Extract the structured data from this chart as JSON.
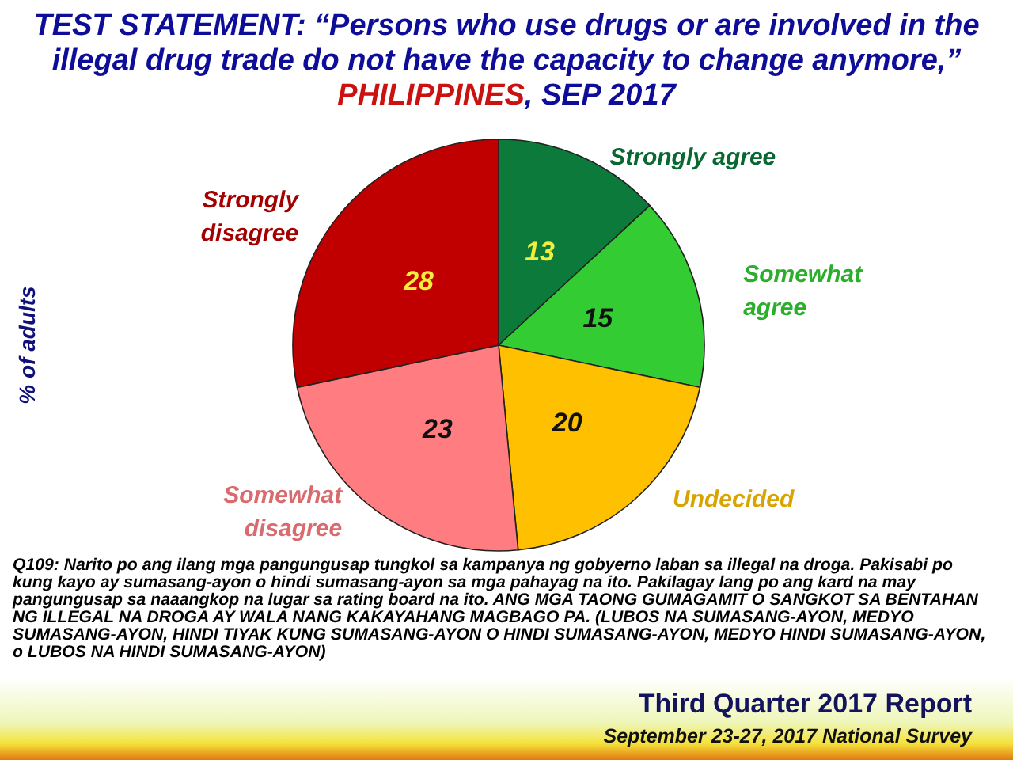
{
  "chart_data": {
    "type": "pie",
    "title": "TEST STATEMENT: “Persons who use drugs or are involved in the illegal drug trade do not have the capacity to change anymore,”",
    "subtitle": "PHILIPPINES, SEP 2017",
    "ylabel": "% of adults",
    "categories": [
      "Strongly agree",
      "Somewhat agree",
      "Undecided",
      "Somewhat disagree",
      "Strongly disagree"
    ],
    "values": [
      13,
      15,
      20,
      23,
      28
    ],
    "colors": [
      "#0b7a3b",
      "#33cc33",
      "#ffc000",
      "#ff7c80",
      "#c00000"
    ],
    "data_labels": true,
    "annotations": [
      "Q109: Narito po ang ilang mga pangungusap tungkol sa kampanya ng gobyerno laban sa illegal na droga. Pakisabi po kung kayo ay sumasang-ayon o hindi sumasang-ayon sa mga pahayag na ito. Pakilagay lang po ang kard na may pangungusap sa naaangkop na lugar sa rating board na ito. ANG MGA TAONG GUMAGAMIT O SANGKOT SA BENTAHAN NG ILLEGAL NA DROGA AY WALA NANG KAKAYAHANG MAGBAGO PA. (LUBOS NA SUMASANG-AYON, MEDYO SUMASANG-AYON, HINDI TIYAK KUNG SUMASANG-AYON O HINDI SUMASANG-AYON, MEDYO HINDI SUMASANG-AYON, o LUBOS NA HINDI SUMASANG-AYON)",
      "Third Quarter 2017 Report",
      "September 23-27, 2017 National Survey"
    ]
  }
}
